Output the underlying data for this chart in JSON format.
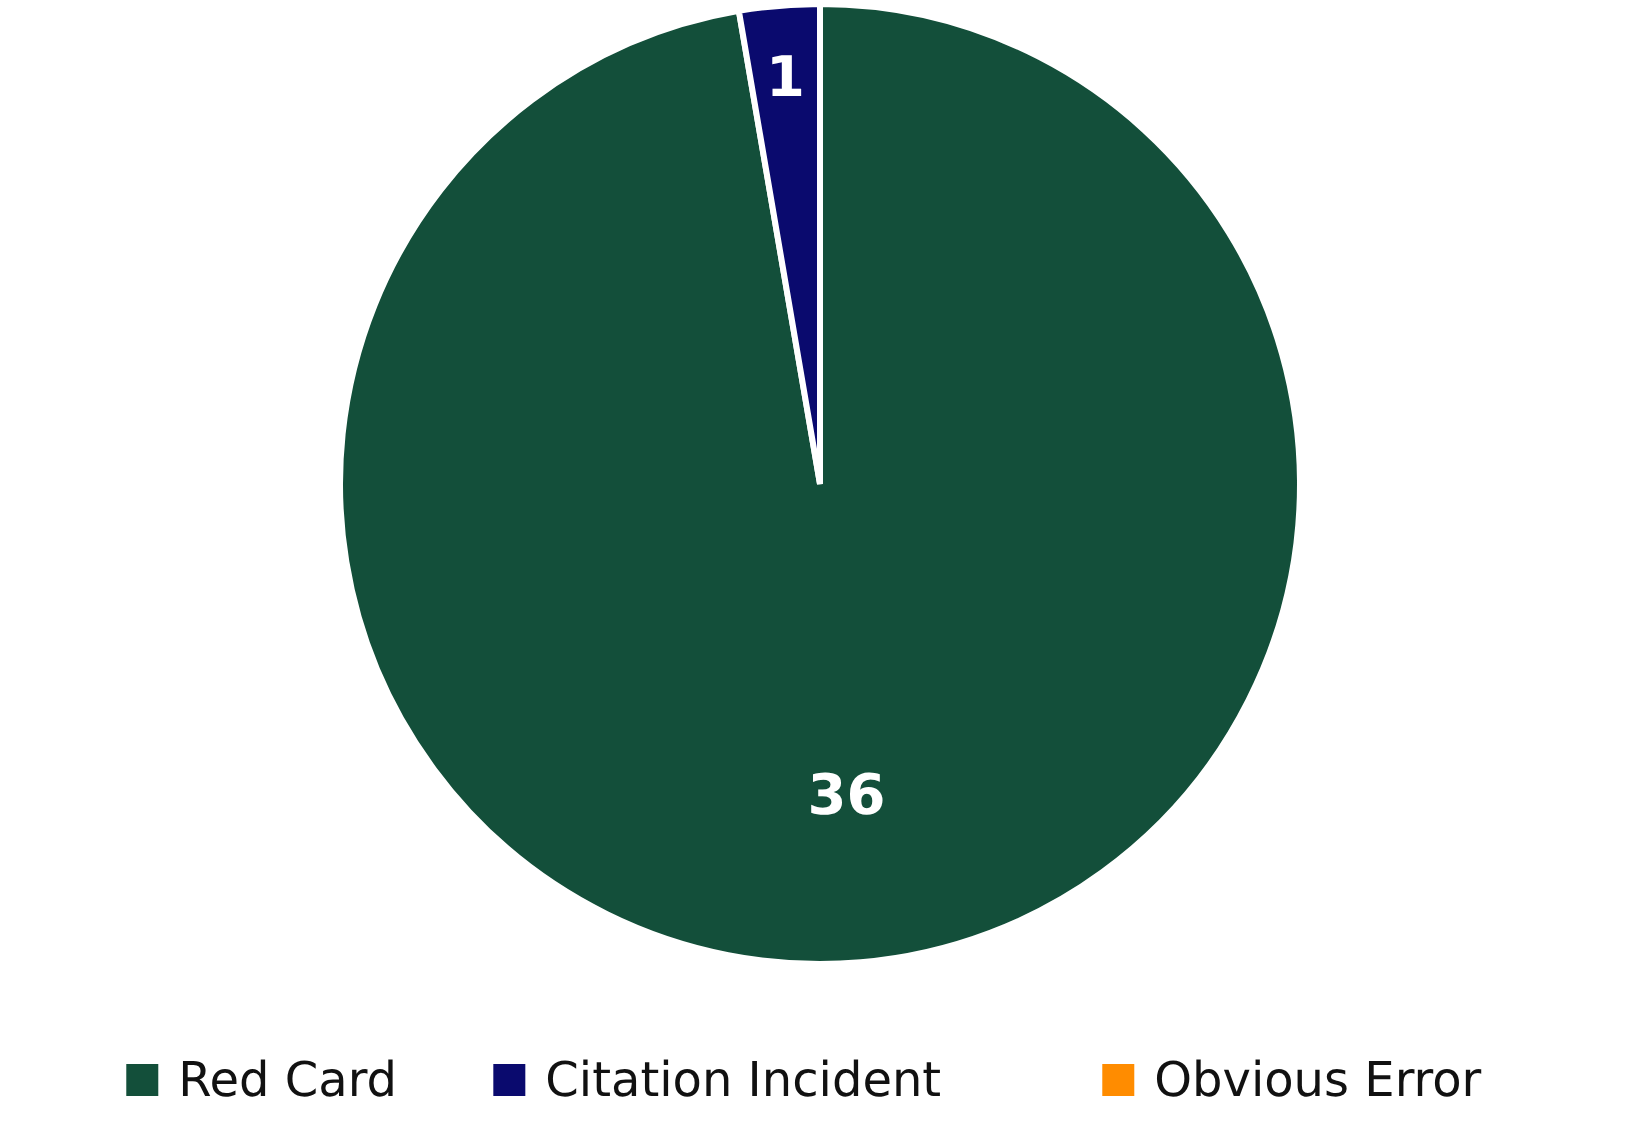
{
  "chart_data": {
    "type": "pie",
    "categories": [
      "Red Card",
      "Citation Incident",
      "Obvious Error"
    ],
    "values": [
      36,
      1,
      0
    ],
    "colors": [
      "#134f3a",
      "#0a0a6e",
      "#ff8c00"
    ],
    "value_labels": [
      "36",
      "1",
      null
    ],
    "legend": "bottom"
  }
}
